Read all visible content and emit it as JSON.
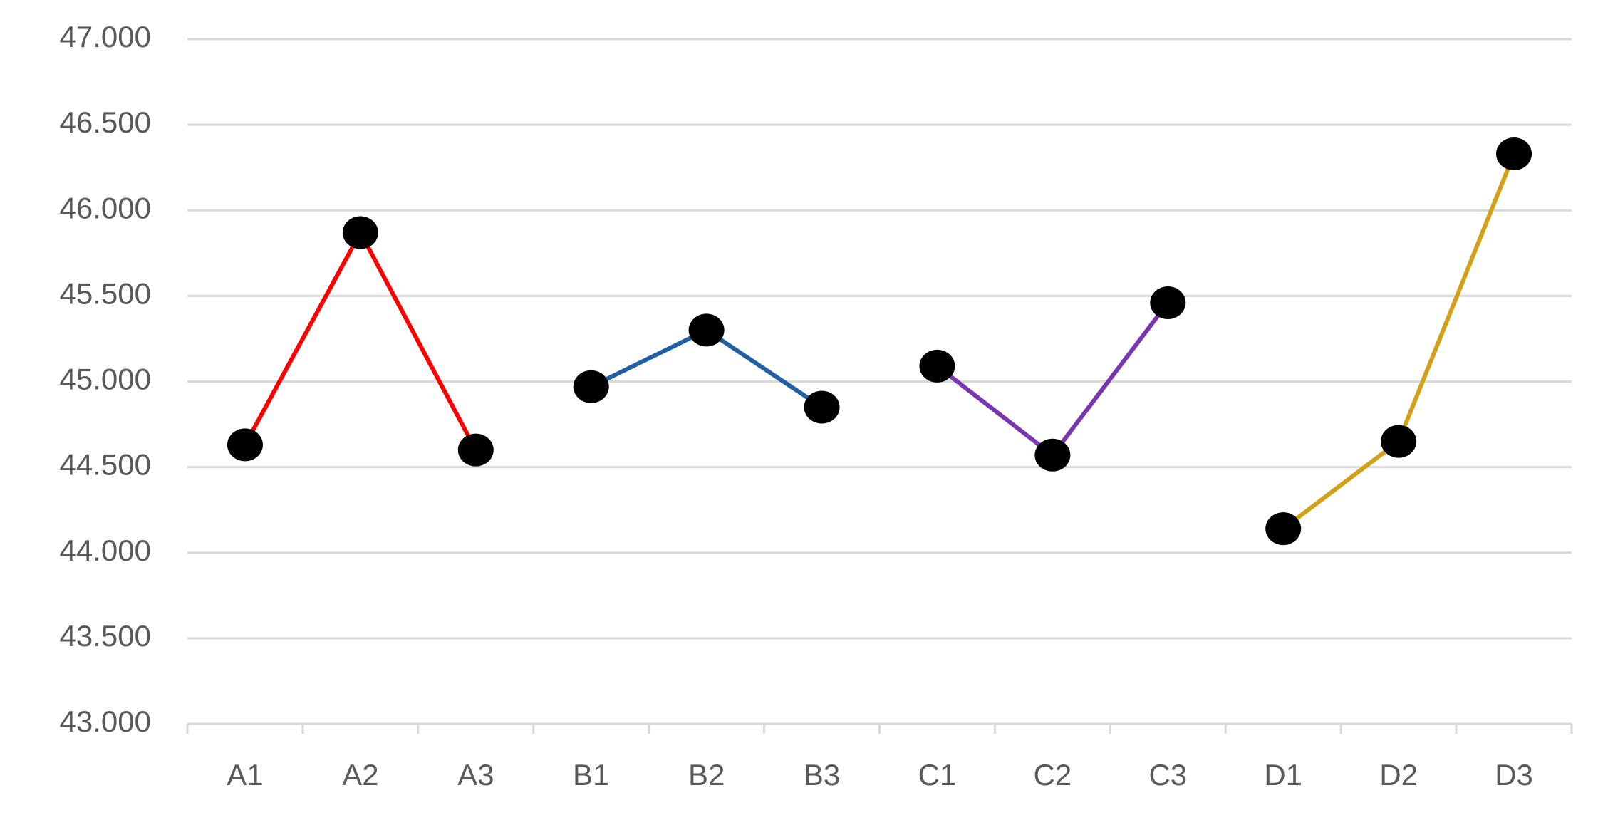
{
  "chart_data": {
    "type": "line",
    "categories": [
      "A1",
      "A2",
      "A3",
      "B1",
      "B2",
      "B3",
      "C1",
      "C2",
      "C3",
      "D1",
      "D2",
      "D3"
    ],
    "series": [
      {
        "color": "#ff0000",
        "values": [
          44.63,
          45.87,
          44.6,
          null,
          null,
          null,
          null,
          null,
          null,
          null,
          null,
          null
        ]
      },
      {
        "color": "#1f5fa6",
        "values": [
          null,
          null,
          null,
          44.97,
          45.3,
          44.85,
          null,
          null,
          null,
          null,
          null,
          null
        ]
      },
      {
        "color": "#7b35b0",
        "values": [
          null,
          null,
          null,
          null,
          null,
          null,
          45.09,
          44.57,
          45.46,
          null,
          null,
          null
        ]
      },
      {
        "color": "#d4a017",
        "values": [
          null,
          null,
          null,
          null,
          null,
          null,
          null,
          null,
          null,
          44.14,
          44.65,
          46.33
        ]
      }
    ],
    "marker_color": "#000000",
    "ylim": [
      43,
      47
    ],
    "yticks": [
      {
        "value": 43,
        "label": "43.000"
      },
      {
        "value": 43.5,
        "label": "43.500"
      },
      {
        "value": 44,
        "label": "44.000"
      },
      {
        "value": 44.5,
        "label": "44.500"
      },
      {
        "value": 45,
        "label": "45.000"
      },
      {
        "value": 45.5,
        "label": "45.500"
      },
      {
        "value": 46,
        "label": "46.000"
      },
      {
        "value": 46.5,
        "label": "46.500"
      },
      {
        "value": 47,
        "label": "47.000"
      }
    ],
    "grid": true
  }
}
